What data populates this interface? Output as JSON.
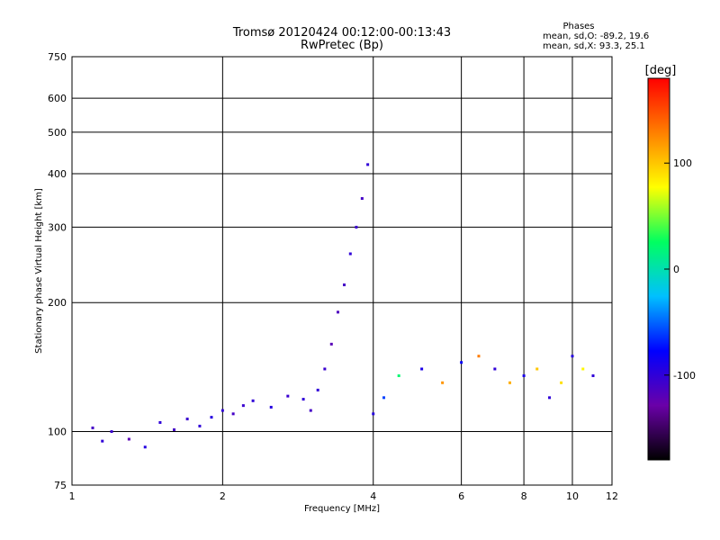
{
  "chart_data": {
    "type": "scatter",
    "title": "Tromsø 20120424 00:12:00-00:13:43",
    "subtitle": "RwPretec (Bp)",
    "xlabel": "Frequency [MHz]",
    "ylabel": "Stationary phase Virtual Height [km]",
    "x_scale": "log",
    "y_scale": "log",
    "xlim": [
      1,
      12
    ],
    "ylim": [
      75,
      750
    ],
    "x_ticks": [
      1,
      2,
      4,
      6,
      8,
      10,
      12
    ],
    "x_tick_labels": [
      "1",
      "2",
      "4",
      "6",
      "8",
      "10",
      "12"
    ],
    "y_ticks": [
      75,
      100,
      200,
      300,
      400,
      500,
      600,
      750
    ],
    "y_tick_labels": [
      "75",
      "100",
      "200",
      "300",
      "400",
      "500",
      "600",
      "750"
    ],
    "grid": true,
    "phases_box": {
      "heading": "Phases",
      "line1": "mean, sd,O: -89.2, 19.6",
      "line2": "mean, sd,X:  93.3, 25.1"
    },
    "colorbar": {
      "label": "[deg]",
      "range": [
        -180,
        180
      ],
      "ticks": [
        100,
        0,
        -100
      ],
      "tick_labels": [
        "100",
        "0",
        "-100"
      ],
      "colormap": "rainbow",
      "stops": [
        "#000000",
        "#6a00a8",
        "#0000ff",
        "#00c0ff",
        "#00ff60",
        "#ffff00",
        "#ff8000",
        "#ff0000"
      ]
    },
    "series": [
      {
        "x": [
          1.1,
          1.15,
          1.2,
          1.3,
          1.4,
          1.5,
          1.6,
          1.7,
          1.8,
          1.9,
          2.0,
          2.1,
          2.2,
          2.3,
          2.5,
          2.7,
          2.9
        ],
        "y": [
          102,
          95,
          100,
          96,
          92,
          105,
          101,
          107,
          103,
          108,
          112,
          110,
          115,
          118,
          114,
          121,
          119
        ],
        "phase": [
          -110,
          -100,
          -105,
          -120,
          -95,
          -100,
          -110,
          -105,
          -100,
          -95,
          -100,
          -110,
          -105,
          -100,
          -95,
          -105,
          -100
        ]
      },
      {
        "x": [
          3.0,
          3.1,
          3.2,
          3.3,
          3.4,
          3.5,
          3.6,
          3.7,
          3.8,
          3.9,
          4.0,
          4.2,
          4.5,
          5.0,
          5.5,
          6.0,
          6.5,
          7.0,
          7.5,
          8.0,
          8.5,
          9.0,
          9.5,
          10.0,
          10.5,
          11.0
        ],
        "y": [
          112,
          125,
          140,
          160,
          190,
          220,
          260,
          300,
          350,
          420,
          110,
          120,
          135,
          140,
          130,
          145,
          150,
          140,
          130,
          135,
          140,
          120,
          130,
          150,
          140,
          135
        ],
        "phase": [
          -110,
          -100,
          -105,
          -120,
          -115,
          -110,
          -100,
          -105,
          -110,
          -100,
          -95,
          -60,
          20,
          -90,
          120,
          -80,
          130,
          -100,
          110,
          -90,
          100,
          -100,
          90,
          -95,
          80,
          -100
        ]
      }
    ]
  }
}
